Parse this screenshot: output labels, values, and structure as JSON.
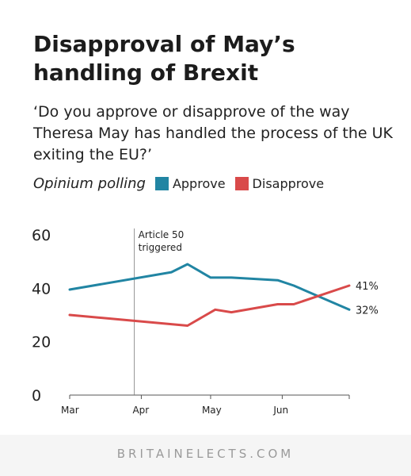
{
  "header": {
    "title": "Disapproval of May’s handling of Brexit",
    "subtitle": "‘Do you approve or disapprove of the way Theresa May has handled the process of the UK exiting the EU?’",
    "source": "Opinium polling"
  },
  "footer": {
    "text": "BRITAINELECTS.COM"
  },
  "chart_data": {
    "type": "line",
    "title": "Disapproval of May’s handling of Brexit",
    "xlabel": "",
    "ylabel": "",
    "x_ticks": [
      "Mar",
      "Apr",
      "May",
      "Jun"
    ],
    "y_ticks": [
      0,
      20,
      40,
      60
    ],
    "ylim": [
      0,
      60
    ],
    "xlim": [
      "2017-03-01",
      "2017-06-30"
    ],
    "grid": false,
    "legend_position": "top",
    "series": [
      {
        "name": "Approve",
        "color": "#2185a3",
        "points": [
          {
            "x": "2017-03-01",
            "y": 39.5
          },
          {
            "x": "2017-04-14",
            "y": 46
          },
          {
            "x": "2017-04-21",
            "y": 49
          },
          {
            "x": "2017-05-01",
            "y": 44
          },
          {
            "x": "2017-05-10",
            "y": 44
          },
          {
            "x": "2017-05-30",
            "y": 43
          },
          {
            "x": "2017-06-06",
            "y": 41
          },
          {
            "x": "2017-06-30",
            "y": 32
          }
        ],
        "end_label": "32%"
      },
      {
        "name": "Disapprove",
        "color": "#d94a4a",
        "points": [
          {
            "x": "2017-03-01",
            "y": 30
          },
          {
            "x": "2017-04-21",
            "y": 26
          },
          {
            "x": "2017-05-03",
            "y": 32
          },
          {
            "x": "2017-05-10",
            "y": 31
          },
          {
            "x": "2017-05-30",
            "y": 34
          },
          {
            "x": "2017-06-06",
            "y": 34
          },
          {
            "x": "2017-06-30",
            "y": 41
          }
        ],
        "end_label": "41%"
      }
    ],
    "annotations": [
      {
        "x": "2017-03-29",
        "text_lines": [
          "Article 50",
          "triggered"
        ]
      }
    ]
  }
}
